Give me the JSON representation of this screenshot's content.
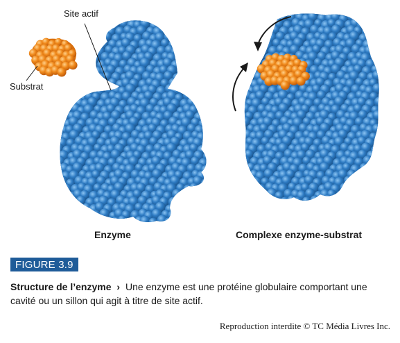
{
  "diagram": {
    "labels": {
      "active_site": "Site actif",
      "substrate": "Substrat",
      "enzyme": "Enzyme",
      "complex": "Complexe enzyme-substrat"
    },
    "colors": {
      "enzyme_blue": "#2f7cc4",
      "enzyme_highlight": "#6fb1ea",
      "enzyme_shadow": "#1a5791",
      "substrate_orange": "#f08a1c",
      "substrate_highlight": "#ffc06a",
      "substrate_shadow": "#c9620a",
      "figure_badge": "#1f5c99"
    }
  },
  "figure": {
    "number": "FIGURE 3.9",
    "caption_title": "Structure de l’enzyme",
    "caption_separator": "›",
    "caption_text": "Une enzyme est une protéine globulaire comportant une cavité ou un sillon qui agit à titre de site actif."
  },
  "footer": {
    "copyright": "Reproduction interdite © TC Média Livres Inc."
  }
}
